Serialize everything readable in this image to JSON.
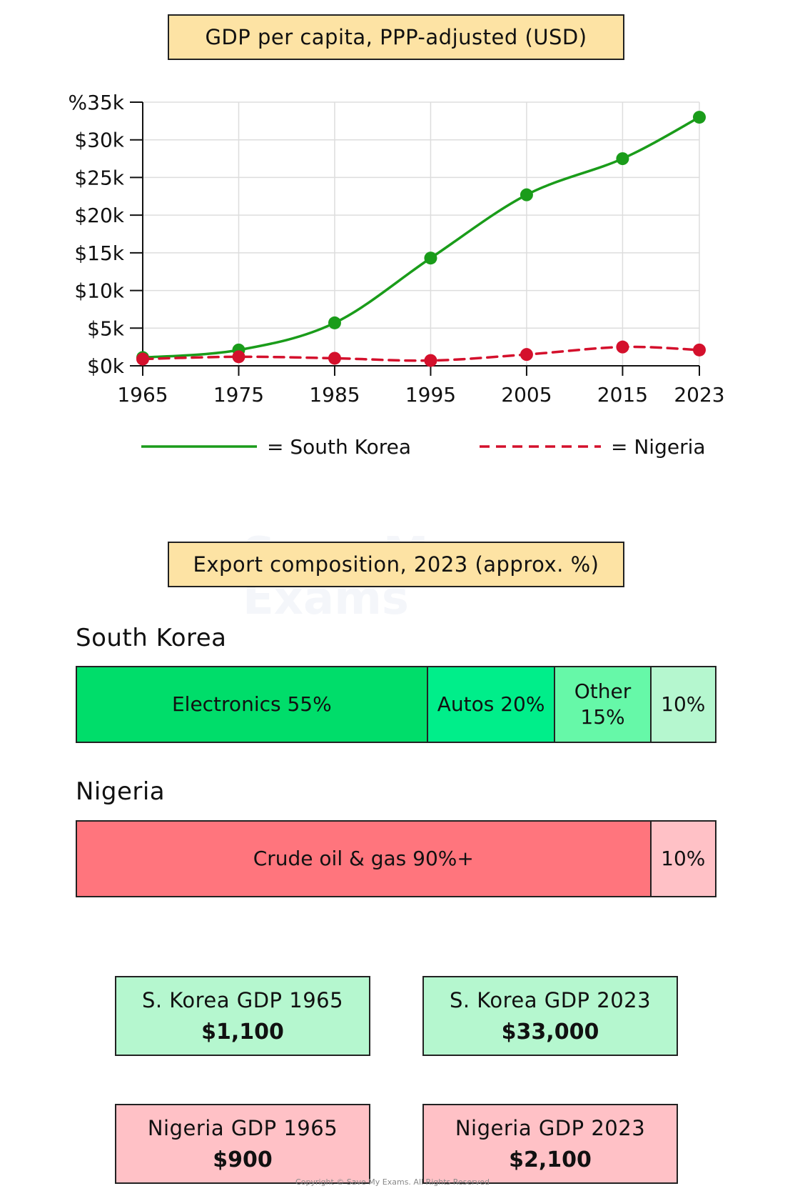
{
  "chart_data": [
    {
      "type": "line",
      "title": "GDP per capita, PPP-adjusted (USD)",
      "x": [
        1965,
        1975,
        1985,
        1995,
        2005,
        2015,
        2023
      ],
      "x_tick_labels": [
        "1965",
        "1975",
        "1985",
        "1995",
        "2005",
        "2015",
        "2023"
      ],
      "y_tick_values": [
        0,
        5000,
        10000,
        15000,
        20000,
        25000,
        30000,
        35000
      ],
      "y_tick_labels": [
        "$0k",
        "$5k",
        "$10k",
        "$15k",
        "$20k",
        "$25k",
        "$30k",
        "%35k"
      ],
      "ylim": [
        0,
        35000
      ],
      "grid": true,
      "legend_position": "bottom",
      "series": [
        {
          "name": "South Korea",
          "legend_label": "= South Korea",
          "color": "#1a9c1a",
          "style": "solid",
          "values": [
            1100,
            2100,
            5700,
            14300,
            22700,
            27500,
            33000
          ]
        },
        {
          "name": "Nigeria",
          "legend_label": "= Nigeria",
          "color": "#d4102c",
          "style": "dashed",
          "values": [
            900,
            1200,
            1000,
            700,
            1500,
            2500,
            2100
          ]
        }
      ]
    },
    {
      "type": "bar",
      "orientation": "horizontal-stacked",
      "title": "Export composition, 2023 (approx. %)",
      "series": [
        {
          "name": "South Korea",
          "segments": [
            {
              "label": "Electronics 55%",
              "value": 55,
              "color": "#00dd6a"
            },
            {
              "label": "Autos 20%",
              "value": 20,
              "color": "#00ee8a"
            },
            {
              "label": "Other 15%",
              "value": 15,
              "color": "#66f8a8"
            },
            {
              "label": "10%",
              "value": 10,
              "color": "#b5f7cf"
            }
          ]
        },
        {
          "name": "Nigeria",
          "segments": [
            {
              "label": "Crude oil & gas 90%+",
              "value": 90,
              "color": "#ff757d"
            },
            {
              "label": "10%",
              "value": 10,
              "color": "#ffc1c6"
            }
          ]
        }
      ]
    }
  ],
  "stats": [
    {
      "label": "S. Korea GDP 1965",
      "value": "$1,100"
    },
    {
      "label": "S. Korea GDP 2023",
      "value": "$33,000"
    },
    {
      "label": "Nigeria GDP 1965",
      "value": "$900"
    },
    {
      "label": "Nigeria GDP 2023",
      "value": "$2,100"
    }
  ],
  "watermark": "Save My Exams",
  "copyright": "Copyright © Save My Exams. All Rights Reserved"
}
